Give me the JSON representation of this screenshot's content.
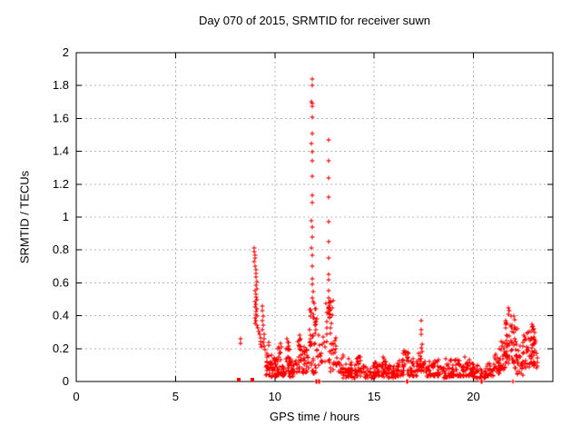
{
  "chart_data": {
    "type": "scatter",
    "title": "Day 070 of 2015, SRMTID for receiver suwn",
    "xlabel": "GPS time / hours",
    "ylabel": "SRMTID / TECUs",
    "xlim": [
      0,
      24
    ],
    "ylim": [
      0,
      2
    ],
    "xticks": [
      0,
      5,
      10,
      15,
      20
    ],
    "xtick_labels": [
      "0",
      "5",
      "10",
      "15",
      "20"
    ],
    "yticks": [
      0,
      0.2,
      0.4,
      0.6,
      0.8,
      1,
      1.2,
      1.4,
      1.6,
      1.8,
      2
    ],
    "ytick_labels": [
      "0",
      "0.2",
      "0.4",
      "0.6",
      "0.8",
      "1",
      "1.2",
      "1.4",
      "1.6",
      "1.8",
      "2"
    ],
    "grid": true,
    "legend": "none",
    "marker": "plus",
    "marker_color": "#ff0000",
    "grid_color": "#b5b5b5",
    "border_color": "#000000",
    "background": "#ffffff",
    "seed": 42,
    "square_points": [
      [
        8.18,
        0.01
      ],
      [
        8.87,
        0.01
      ]
    ],
    "points": [
      [
        8.27,
        0.26
      ],
      [
        8.29,
        0.23
      ],
      [
        8.97,
        0.81
      ],
      [
        8.98,
        0.79
      ],
      [
        8.99,
        0.77
      ],
      [
        9.0,
        0.75
      ],
      [
        8.98,
        0.73
      ],
      [
        9.02,
        0.7
      ],
      [
        9.05,
        0.68
      ],
      [
        9.07,
        0.66
      ],
      [
        9.05,
        0.635
      ],
      [
        9.09,
        0.61
      ],
      [
        9.03,
        0.585
      ],
      [
        9.11,
        0.565
      ],
      [
        9.0,
        0.55
      ],
      [
        9.03,
        0.53
      ],
      [
        9.06,
        0.515
      ],
      [
        9.1,
        0.5
      ],
      [
        9.02,
        0.485
      ],
      [
        9.05,
        0.47
      ],
      [
        9.0,
        0.455
      ],
      [
        9.08,
        0.44
      ],
      [
        9.03,
        0.425
      ],
      [
        9.06,
        0.41
      ],
      [
        9.1,
        0.4
      ],
      [
        9.0,
        0.385
      ],
      [
        9.05,
        0.37
      ],
      [
        9.02,
        0.355
      ],
      [
        9.08,
        0.34
      ],
      [
        9.14,
        0.325
      ],
      [
        9.18,
        0.305
      ],
      [
        9.22,
        0.285
      ],
      [
        9.26,
        0.265
      ],
      [
        9.3,
        0.245
      ],
      [
        9.28,
        0.225
      ],
      [
        9.33,
        0.21
      ],
      [
        9.36,
        0.46
      ],
      [
        9.38,
        0.43
      ],
      [
        9.4,
        0.4
      ],
      [
        9.37,
        0.37
      ],
      [
        9.42,
        0.34
      ],
      [
        9.39,
        0.315
      ],
      [
        9.44,
        0.29
      ],
      [
        9.46,
        0.26
      ],
      [
        9.43,
        0.235
      ],
      [
        9.48,
        0.215
      ],
      [
        9.52,
        0.195
      ],
      [
        9.68,
        0.24
      ],
      [
        9.7,
        0.22
      ],
      [
        10.2,
        0.21
      ],
      [
        10.3,
        0.23
      ],
      [
        10.35,
        0.21
      ],
      [
        10.62,
        0.26
      ],
      [
        10.66,
        0.24
      ],
      [
        11.25,
        0.28
      ],
      [
        11.3,
        0.26
      ],
      [
        11.88,
        1.84
      ],
      [
        11.87,
        1.8
      ],
      [
        11.86,
        1.7
      ],
      [
        11.88,
        1.69
      ],
      [
        11.87,
        1.675
      ],
      [
        11.87,
        1.61
      ],
      [
        11.88,
        1.51
      ],
      [
        11.86,
        1.45
      ],
      [
        11.87,
        1.4
      ],
      [
        11.88,
        1.34
      ],
      [
        11.87,
        1.25
      ],
      [
        11.88,
        1.13
      ],
      [
        11.87,
        1.09
      ],
      [
        11.86,
        0.98
      ],
      [
        11.87,
        0.94
      ],
      [
        11.88,
        0.88
      ],
      [
        11.86,
        0.81
      ],
      [
        11.88,
        0.77
      ],
      [
        11.9,
        0.7
      ],
      [
        11.88,
        0.625
      ],
      [
        11.9,
        0.59
      ],
      [
        11.92,
        0.545
      ],
      [
        11.9,
        0.51
      ],
      [
        12.2,
        0.28
      ],
      [
        12.25,
        0.22
      ],
      [
        12.32,
        0.17
      ],
      [
        12.4,
        0.12
      ],
      [
        12.48,
        0.24
      ],
      [
        12.7,
        1.47
      ],
      [
        12.71,
        1.34
      ],
      [
        12.7,
        1.24
      ],
      [
        12.72,
        1.12
      ],
      [
        12.7,
        0.97
      ],
      [
        12.71,
        0.85
      ],
      [
        12.72,
        0.75
      ],
      [
        12.7,
        0.65
      ],
      [
        12.73,
        0.62
      ],
      [
        12.71,
        0.555
      ],
      [
        12.72,
        0.51
      ],
      [
        12.74,
        0.475
      ],
      [
        12.7,
        0.445
      ],
      [
        12.73,
        0.415
      ],
      [
        12.75,
        0.385
      ],
      [
        13.7,
        0.14
      ],
      [
        14.3,
        0.15
      ],
      [
        15.45,
        0.15
      ],
      [
        16.5,
        0.19
      ],
      [
        16.55,
        0.17
      ],
      [
        17.38,
        0.37
      ],
      [
        17.39,
        0.315
      ],
      [
        17.37,
        0.29
      ],
      [
        17.4,
        0.225
      ],
      [
        17.38,
        0.205
      ],
      [
        17.42,
        0.185
      ],
      [
        18.6,
        0.14
      ],
      [
        18.88,
        0.13
      ],
      [
        19.56,
        0.15
      ],
      [
        19.8,
        0.13
      ],
      [
        21.3,
        0.2
      ],
      [
        21.5,
        0.24
      ],
      [
        21.78,
        0.45
      ],
      [
        21.8,
        0.43
      ],
      [
        21.76,
        0.41
      ],
      [
        21.9,
        0.4
      ],
      [
        22.05,
        0.4
      ],
      [
        22.1,
        0.375
      ],
      [
        22.95,
        0.35
      ],
      [
        23.0,
        0.335
      ],
      [
        23.05,
        0.32
      ],
      [
        23.1,
        0.3
      ],
      [
        12.07,
        0
      ],
      [
        12.1,
        0
      ],
      [
        12.2,
        0
      ],
      [
        12.24,
        0
      ],
      [
        16.65,
        0
      ],
      [
        16.7,
        0
      ],
      [
        20.4,
        0
      ],
      [
        20.44,
        0
      ],
      [
        22.0,
        0
      ]
    ],
    "dense_bands_format": "[x_start, x_end, y_min, y_max, count, optional_density_exponent]",
    "dense_bands": [
      [
        9.55,
        9.8,
        0.04,
        0.2,
        22
      ],
      [
        9.8,
        10.1,
        0.03,
        0.16,
        26
      ],
      [
        10.1,
        10.35,
        0.04,
        0.2,
        22
      ],
      [
        10.35,
        10.55,
        0.03,
        0.14,
        16
      ],
      [
        10.55,
        10.75,
        0.05,
        0.24,
        20
      ],
      [
        10.75,
        11.1,
        0.03,
        0.15,
        28
      ],
      [
        11.1,
        11.4,
        0.05,
        0.26,
        26
      ],
      [
        11.4,
        11.72,
        0.05,
        0.22,
        26
      ],
      [
        11.72,
        12.12,
        0.22,
        0.5,
        30,
        1.0
      ],
      [
        11.75,
        12.12,
        0.05,
        0.22,
        16
      ],
      [
        12.12,
        12.55,
        0.05,
        0.3,
        14
      ],
      [
        12.58,
        12.92,
        0.22,
        0.5,
        26,
        1.0
      ],
      [
        12.6,
        12.95,
        0.06,
        0.22,
        10
      ],
      [
        12.92,
        13.15,
        0.1,
        0.3,
        16
      ],
      [
        13.15,
        13.45,
        0.04,
        0.17,
        20
      ],
      [
        13.45,
        14.1,
        0.02,
        0.12,
        46
      ],
      [
        14.1,
        14.45,
        0.03,
        0.15,
        24
      ],
      [
        14.45,
        15.0,
        0.02,
        0.1,
        40
      ],
      [
        15.0,
        15.3,
        0.03,
        0.12,
        22
      ],
      [
        15.3,
        15.65,
        0.03,
        0.14,
        26
      ],
      [
        15.65,
        16.0,
        0.02,
        0.1,
        26
      ],
      [
        16.0,
        16.35,
        0.03,
        0.13,
        24
      ],
      [
        16.35,
        16.75,
        0.04,
        0.18,
        28
      ],
      [
        16.75,
        17.15,
        0.03,
        0.14,
        26
      ],
      [
        17.15,
        17.6,
        0.06,
        0.19,
        30
      ],
      [
        17.6,
        18.0,
        0.03,
        0.12,
        26
      ],
      [
        18.0,
        18.45,
        0.03,
        0.13,
        28
      ],
      [
        18.45,
        18.8,
        0.02,
        0.11,
        24
      ],
      [
        18.8,
        19.2,
        0.03,
        0.14,
        28
      ],
      [
        19.2,
        19.65,
        0.03,
        0.13,
        28
      ],
      [
        19.65,
        20.0,
        0.03,
        0.12,
        24
      ],
      [
        20.0,
        20.35,
        0.02,
        0.1,
        22
      ],
      [
        20.35,
        20.65,
        0.02,
        0.08,
        18
      ],
      [
        20.65,
        21.0,
        0.03,
        0.12,
        22
      ],
      [
        21.0,
        21.35,
        0.05,
        0.18,
        24
      ],
      [
        21.35,
        21.6,
        0.07,
        0.25,
        22
      ],
      [
        21.6,
        21.9,
        0.1,
        0.38,
        30,
        1.1
      ],
      [
        21.9,
        22.2,
        0.08,
        0.35,
        30,
        1.1
      ],
      [
        22.2,
        22.5,
        0.04,
        0.22,
        22
      ],
      [
        22.5,
        22.8,
        0.08,
        0.3,
        26,
        1.1
      ],
      [
        22.8,
        23.05,
        0.1,
        0.34,
        26,
        1.1
      ],
      [
        23.05,
        23.25,
        0.08,
        0.26,
        16,
        1.1
      ]
    ]
  }
}
